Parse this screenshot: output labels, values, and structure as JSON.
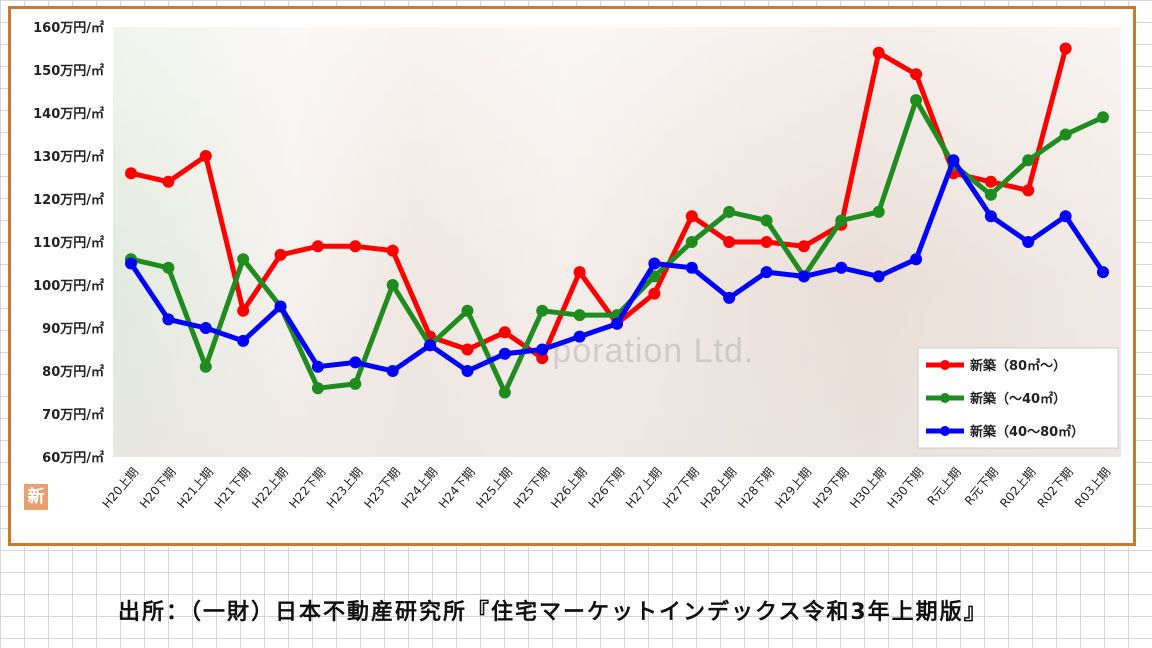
{
  "source_note": "出所：（一財）日本不動産研究所『住宅マーケットインデックス令和3年上期版』",
  "watermark": "rporation Ltd.",
  "logo_text": "新",
  "colors": {
    "frame": "#c87a2e",
    "red": "#ff0000",
    "green": "#1e8c1e",
    "blue": "#0000ff"
  },
  "chart_data": {
    "type": "line",
    "title": "",
    "xlabel": "",
    "ylabel": "",
    "ylim": [
      60,
      160
    ],
    "y_ticks": [
      "60万円/㎡",
      "70万円/㎡",
      "80万円/㎡",
      "90万円/㎡",
      "100万円/㎡",
      "110万円/㎡",
      "120万円/㎡",
      "130万円/㎡",
      "140万円/㎡",
      "150万円/㎡",
      "160万円/㎡"
    ],
    "grid": false,
    "legend_position": "bottom-right",
    "categories": [
      "H20上期",
      "H20下期",
      "H21上期",
      "H21下期",
      "H22上期",
      "H22下期",
      "H23上期",
      "H23下期",
      "H24上期",
      "H24下期",
      "H25上期",
      "H25下期",
      "H26上期",
      "H26下期",
      "H27上期",
      "H27下期",
      "H28上期",
      "H28下期",
      "H29上期",
      "H29下期",
      "H30上期",
      "H30下期",
      "R元上期",
      "R元下期",
      "R02上期",
      "R02下期",
      "R03上期"
    ],
    "series": [
      {
        "name": "新築（80㎡～）",
        "color": "#ff0000",
        "values": [
          126,
          124,
          130,
          94,
          107,
          109,
          109,
          108,
          88,
          85,
          89,
          83,
          103,
          91,
          98,
          116,
          110,
          110,
          109,
          114,
          154,
          149,
          126,
          124,
          122,
          155,
          null
        ]
      },
      {
        "name": "新築（～40㎡）",
        "color": "#1e8c1e",
        "values": [
          106,
          104,
          81,
          106,
          95,
          76,
          77,
          100,
          86,
          94,
          75,
          94,
          93,
          93,
          102,
          110,
          117,
          115,
          102,
          115,
          117,
          143,
          128,
          121,
          129,
          135,
          139
        ]
      },
      {
        "name": "新築（40～80㎡）",
        "color": "#0000ff",
        "values": [
          105,
          92,
          90,
          87,
          95,
          81,
          82,
          80,
          86,
          80,
          84,
          85,
          88,
          91,
          105,
          104,
          97,
          103,
          102,
          104,
          102,
          106,
          129,
          116,
          110,
          116,
          103
        ]
      }
    ]
  }
}
